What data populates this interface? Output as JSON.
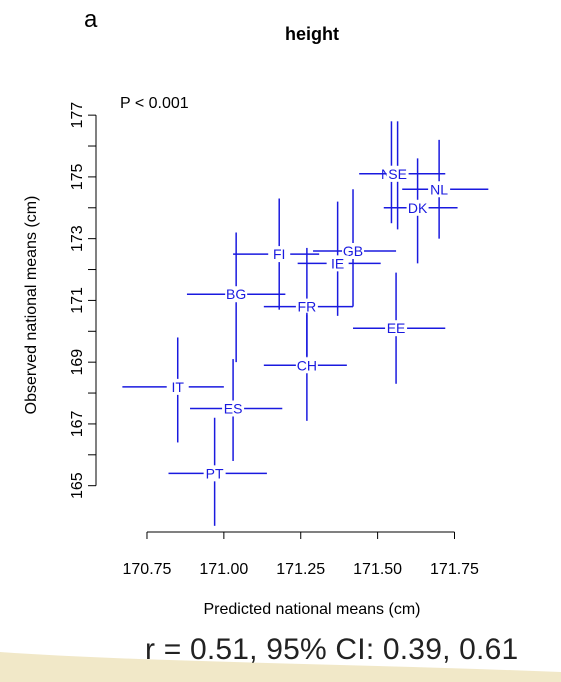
{
  "panel_label": "a",
  "footer": "r = 0.51, 95% CI: 0.39, 0.61",
  "colors": {
    "series": "#1a1adf",
    "axis": "#000000",
    "background": "#ffffff",
    "sweep": "#e8d9a4"
  },
  "chart_data": {
    "type": "scatter",
    "title": "height",
    "xlabel": "Predicted national means (cm)",
    "ylabel": "Observed national means (cm)",
    "annotation": "P < 0.001",
    "xlim": [
      170.62,
      171.95
    ],
    "ylim": [
      163.5,
      178.3
    ],
    "xticks": [
      "170.75",
      "171.00",
      "171.25",
      "171.50",
      "171.75"
    ],
    "yticks": [
      "165",
      "167",
      "169",
      "171",
      "173",
      "175",
      "177"
    ],
    "grid": false,
    "points": [
      {
        "label": "NO",
        "x": 171.545,
        "y": 175.1,
        "x_err": [
          171.44,
          171.62
        ],
        "y_err": [
          173.5,
          176.8
        ]
      },
      {
        "label": "SE",
        "x": 171.565,
        "y": 175.1,
        "x_err": [
          171.46,
          171.72
        ],
        "y_err": [
          173.3,
          176.8
        ]
      },
      {
        "label": "NL",
        "x": 171.7,
        "y": 174.6,
        "x_err": [
          171.58,
          171.86
        ],
        "y_err": [
          173.0,
          176.2
        ]
      },
      {
        "label": "DK",
        "x": 171.63,
        "y": 174.0,
        "x_err": [
          171.52,
          171.76
        ],
        "y_err": [
          172.2,
          175.6
        ]
      },
      {
        "label": "GB",
        "x": 171.42,
        "y": 172.6,
        "x_err": [
          171.29,
          171.56
        ],
        "y_err": [
          170.8,
          174.6
        ]
      },
      {
        "label": "IE",
        "x": 171.37,
        "y": 172.2,
        "x_err": [
          171.24,
          171.51
        ],
        "y_err": [
          170.5,
          174.2
        ]
      },
      {
        "label": "FI",
        "x": 171.18,
        "y": 172.5,
        "x_err": [
          171.03,
          171.31
        ],
        "y_err": [
          170.7,
          174.3
        ]
      },
      {
        "label": "BG",
        "x": 171.04,
        "y": 171.2,
        "x_err": [
          170.88,
          171.2
        ],
        "y_err": [
          169.0,
          173.2
        ]
      },
      {
        "label": "FR",
        "x": 171.27,
        "y": 170.8,
        "x_err": [
          171.13,
          171.42
        ],
        "y_err": [
          169.2,
          172.7
        ]
      },
      {
        "label": "EE",
        "x": 171.56,
        "y": 170.1,
        "x_err": [
          171.42,
          171.72
        ],
        "y_err": [
          168.3,
          171.9
        ]
      },
      {
        "label": "CH",
        "x": 171.27,
        "y": 168.9,
        "x_err": [
          171.13,
          171.4
        ],
        "y_err": [
          167.1,
          170.6
        ]
      },
      {
        "label": "IT",
        "x": 170.85,
        "y": 168.2,
        "x_err": [
          170.67,
          171.0
        ],
        "y_err": [
          166.4,
          169.8
        ]
      },
      {
        "label": "ES",
        "x": 171.03,
        "y": 167.5,
        "x_err": [
          170.89,
          171.19
        ],
        "y_err": [
          165.8,
          169.1
        ]
      },
      {
        "label": "PT",
        "x": 170.97,
        "y": 165.4,
        "x_err": [
          170.82,
          171.14
        ],
        "y_err": [
          163.7,
          167.2
        ]
      }
    ]
  }
}
